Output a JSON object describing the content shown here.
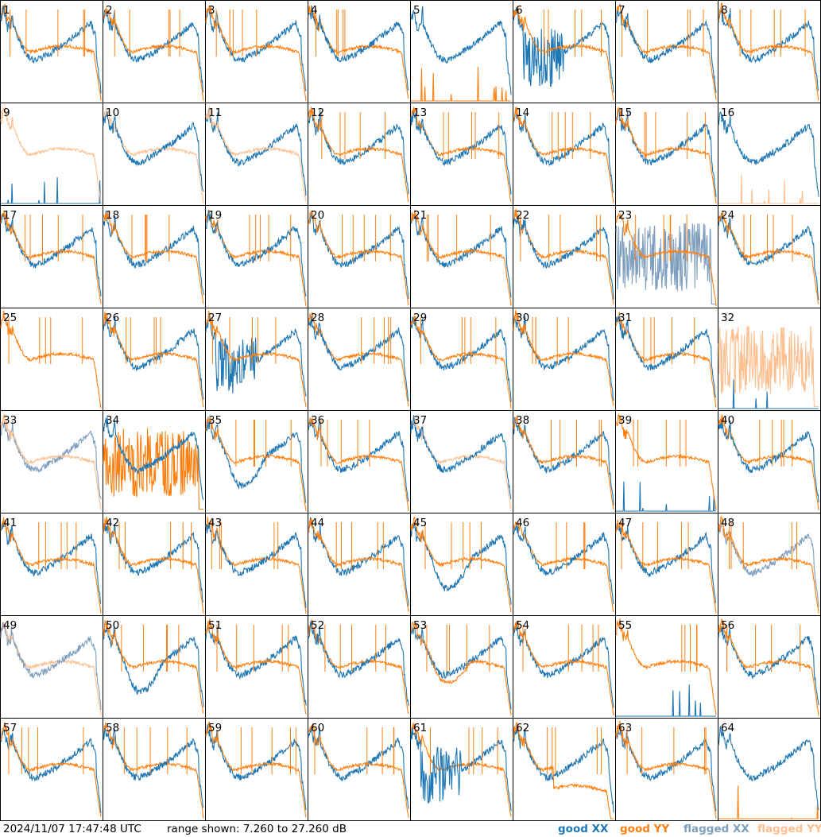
{
  "chart_data": {
    "type": "line",
    "panels": [
      "1",
      "2",
      "3",
      "4",
      "5",
      "6",
      "7",
      "8",
      "9",
      "10",
      "11",
      "12",
      "13",
      "14",
      "15",
      "16",
      "17",
      "18",
      "19",
      "20",
      "21",
      "22",
      "23",
      "24",
      "25",
      "26",
      "27",
      "28",
      "29",
      "30",
      "31",
      "32",
      "33",
      "34",
      "35",
      "36",
      "37",
      "38",
      "39",
      "40",
      "41",
      "42",
      "43",
      "44",
      "45",
      "46",
      "47",
      "48",
      "49",
      "50",
      "51",
      "52",
      "53",
      "54",
      "55",
      "56",
      "57",
      "58",
      "59",
      "60",
      "61",
      "62",
      "63",
      "64"
    ],
    "ylim_db": [
      7.26,
      27.26
    ],
    "panel_states": {
      "5": {
        "yy": "dead"
      },
      "6": {
        "xx": "broken"
      },
      "9": {
        "xx": "dead",
        "yy": "flagged"
      },
      "10": {
        "yy": "flagged"
      },
      "11": {
        "yy": "flagged"
      },
      "16": {
        "yy": "dead-flagged"
      },
      "23": {
        "xx": "flagged-noisy"
      },
      "25": {
        "xx": "hidden"
      },
      "27": {
        "xx": "broken"
      },
      "32": {
        "yy": "flagged-noisy",
        "xx": "dead"
      },
      "33": {
        "xx": "flagged",
        "yy": "flagged"
      },
      "34": {
        "yy": "noisy-dead"
      },
      "35": {
        "xx": "dip"
      },
      "37": {
        "yy": "flagged"
      },
      "39": {
        "xx": "dead"
      },
      "45": {
        "xx": "dip"
      },
      "48": {
        "xx": "flagged"
      },
      "49": {
        "xx": "flagged",
        "yy": "flagged"
      },
      "50": {
        "xx": "dip"
      },
      "53": {
        "yy": "dip"
      },
      "55": {
        "xx": "dead"
      },
      "61": {
        "xx": "broken"
      },
      "62": {
        "yy": "low"
      },
      "64": {
        "yy": "dead"
      }
    },
    "series": [
      {
        "name": "good XX",
        "color": "#1f77b4"
      },
      {
        "name": "good YY",
        "color": "#ff7f0e"
      },
      {
        "name": "flagged XX",
        "color": "#7f9fbf"
      },
      {
        "name": "flagged YY",
        "color": "#ffbf8f"
      }
    ]
  },
  "footer": {
    "timestamp": "2024/11/07 17:47:48 UTC",
    "range": "range shown: 7.260 to 27.260 dB"
  }
}
